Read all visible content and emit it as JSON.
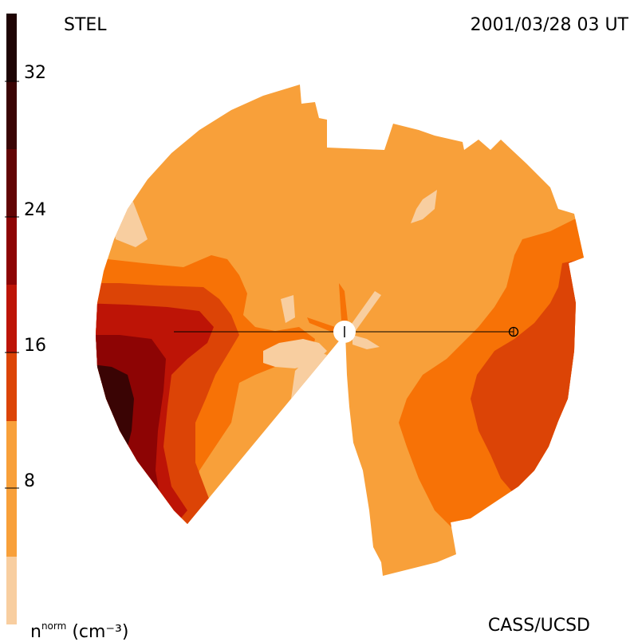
{
  "header": {
    "observatory": "STEL",
    "datetime": "2001/03/28 03 UT"
  },
  "footer": {
    "credit": "CASS/UCSD",
    "quantity_symbol": "n",
    "quantity_superscript": "norm",
    "quantity_unit": "(cm⁻³)"
  },
  "colorbar": {
    "tick_labels": [
      "32",
      "24",
      "16",
      "8"
    ],
    "tick_values": [
      32,
      24,
      16,
      8
    ],
    "range": [
      0,
      36
    ],
    "level_colors": [
      "#f8cea0",
      "#f8a03a",
      "#f77206",
      "#dc4406",
      "#bd1406",
      "#8d0404",
      "#620404",
      "#3a0404",
      "#1e0404"
    ]
  },
  "map": {
    "palette": {
      "background": "#f8a03a",
      "light": "#f8cea0",
      "orange": "#f77206",
      "dark_orange": "#dc4406",
      "red": "#bd1406",
      "dark_red": "#8d0404",
      "darkest": "#3a0404"
    }
  }
}
